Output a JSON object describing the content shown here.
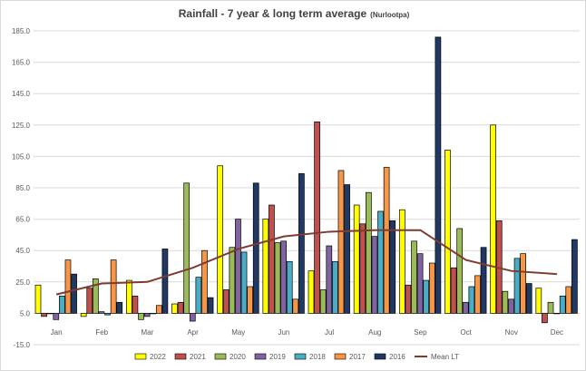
{
  "chart_data": {
    "type": "bar",
    "title": "Rainfall - 7 year & long term average",
    "subtitle": "(Nurlootpa)",
    "categories": [
      "Jan",
      "Feb",
      "Mar",
      "Apr",
      "May",
      "Jun",
      "Jul",
      "Aug",
      "Sep",
      "Oct",
      "Nov",
      "Dec"
    ],
    "yticks": [
      "185.0",
      "165.0",
      "145.0",
      "125.0",
      "105.0",
      "85.0",
      "65.0",
      "45.0",
      "25.0",
      "5.0",
      "-15.0"
    ],
    "ylim": [
      -15,
      185
    ],
    "grid": true,
    "legend_position": "bottom",
    "series": [
      {
        "name": "2022",
        "color": "#ffff00",
        "values": [
          23,
          3,
          26,
          11,
          99,
          65,
          32,
          74,
          71,
          109,
          125,
          21
        ]
      },
      {
        "name": "2021",
        "color": "#c0504d",
        "values": [
          3,
          21,
          16,
          12,
          20,
          74,
          127,
          62,
          23,
          34,
          64,
          -1
        ]
      },
      {
        "name": "2020",
        "color": "#9bbb59",
        "values": [
          5,
          27,
          1,
          88,
          47,
          50,
          20,
          82,
          51,
          59,
          19,
          12
        ]
      },
      {
        "name": "2019",
        "color": "#8064a2",
        "values": [
          1,
          6,
          3,
          0,
          65,
          51,
          48,
          54,
          43,
          12,
          14,
          5
        ]
      },
      {
        "name": "2018",
        "color": "#4bacc6",
        "values": [
          16,
          4,
          5,
          28,
          44,
          38,
          38,
          70,
          26,
          22,
          40,
          16
        ]
      },
      {
        "name": "2017",
        "color": "#f79646",
        "values": [
          39,
          39,
          10,
          45,
          22,
          14,
          96,
          98,
          37,
          29,
          43,
          22
        ]
      },
      {
        "name": "2016",
        "color": "#1f3864",
        "values": [
          30,
          12,
          46,
          15,
          88,
          94,
          87,
          64,
          181,
          47,
          24,
          52
        ]
      }
    ],
    "line_series": {
      "name": "Mean LT",
      "color": "#7f3b2f",
      "values": [
        17,
        24,
        25,
        34,
        46,
        54,
        57,
        58,
        58,
        39,
        32,
        30
      ]
    }
  }
}
